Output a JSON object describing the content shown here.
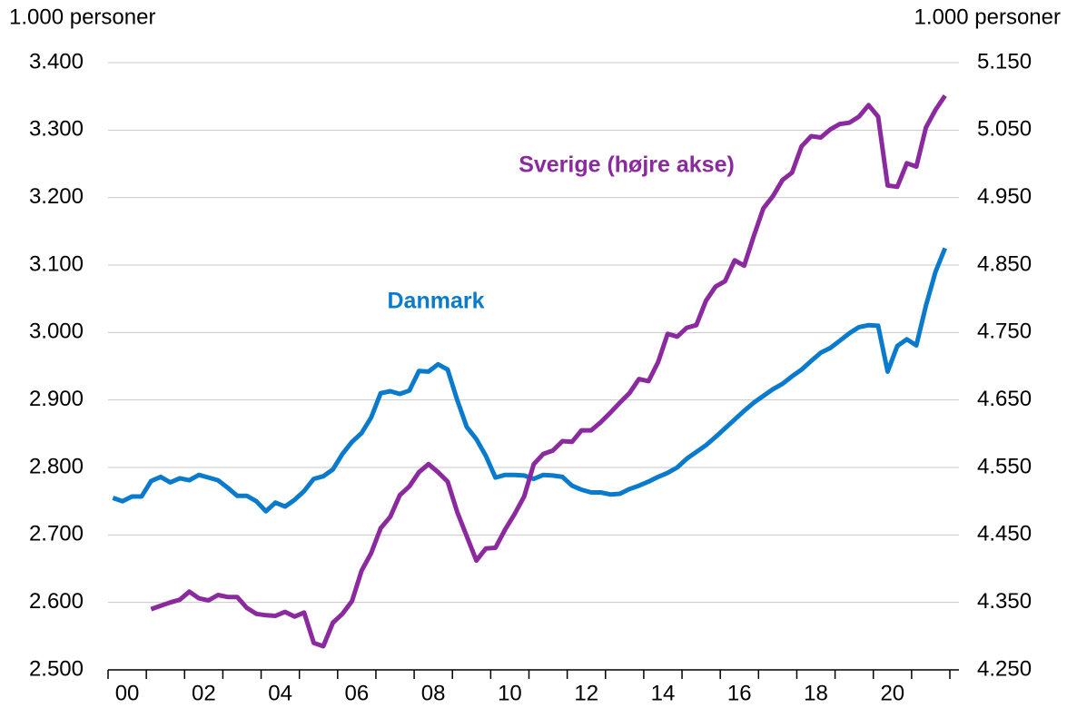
{
  "chart_data": {
    "type": "line",
    "y_axis_label": "1.000 personer",
    "y2_axis_label": "1.000 personer",
    "annotations": [
      "Danmark",
      "Sverige (højre akse)"
    ],
    "x": [
      2000.125,
      2000.375,
      2000.625,
      2000.875,
      2001.125,
      2001.375,
      2001.625,
      2001.875,
      2002.125,
      2002.375,
      2002.625,
      2002.875,
      2003.125,
      2003.375,
      2003.625,
      2003.875,
      2004.125,
      2004.375,
      2004.625,
      2004.875,
      2005.125,
      2005.375,
      2005.625,
      2005.875,
      2006.125,
      2006.375,
      2006.625,
      2006.875,
      2007.125,
      2007.375,
      2007.625,
      2007.875,
      2008.125,
      2008.375,
      2008.625,
      2008.875,
      2009.125,
      2009.375,
      2009.625,
      2009.875,
      2010.125,
      2010.375,
      2010.625,
      2010.875,
      2011.125,
      2011.375,
      2011.625,
      2011.875,
      2012.125,
      2012.375,
      2012.625,
      2012.875,
      2013.125,
      2013.375,
      2013.625,
      2013.875,
      2014.125,
      2014.375,
      2014.625,
      2014.875,
      2015.125,
      2015.375,
      2015.625,
      2015.875,
      2016.125,
      2016.375,
      2016.625,
      2016.875,
      2017.125,
      2017.375,
      2017.625,
      2017.875,
      2018.125,
      2018.375,
      2018.625,
      2018.875,
      2019.125,
      2019.375,
      2019.625,
      2019.875,
      2020.125,
      2020.375,
      2020.625,
      2020.875,
      2021.125,
      2021.375,
      2021.625,
      2021.875
    ],
    "series": [
      {
        "name": "Danmark",
        "color": "#0a7bcc",
        "axis": "y",
        "values": [
          2755,
          2750,
          2757,
          2757,
          2780,
          2786,
          2778,
          2784,
          2781,
          2789,
          2785,
          2781,
          2770,
          2758,
          2758,
          2750,
          2735,
          2748,
          2742,
          2752,
          2765,
          2783,
          2787,
          2797,
          2820,
          2838,
          2851,
          2874,
          2910,
          2913,
          2909,
          2914,
          2943,
          2942,
          2953,
          2945,
          2900,
          2860,
          2842,
          2817,
          2785,
          2789,
          2789,
          2788,
          2783,
          2789,
          2788,
          2786,
          2773,
          2767,
          2763,
          2763,
          2760,
          2761,
          2768,
          2773,
          2779,
          2786,
          2792,
          2800,
          2813,
          2823,
          2833,
          2845,
          2858,
          2871,
          2884,
          2896,
          2906,
          2916,
          2924,
          2935,
          2945,
          2958,
          2970,
          2977,
          2988,
          2999,
          3008,
          3011,
          3010,
          2942,
          2980,
          2990,
          2981,
          3040,
          3090,
          3125
        ]
      },
      {
        "name": "Sverige",
        "color": "#8b2a9e",
        "axis": "y2",
        "values": [
          null,
          null,
          null,
          null,
          4340,
          4345,
          4350,
          4354,
          4366,
          4356,
          4353,
          4361,
          4358,
          4358,
          4342,
          4333,
          4331,
          4330,
          4336,
          4329,
          4335,
          4290,
          4285,
          4320,
          4333,
          4352,
          4397,
          4423,
          4460,
          4477,
          4509,
          4522,
          4543,
          4555,
          4543,
          4529,
          4484,
          4448,
          4412,
          4430,
          4431,
          4458,
          4481,
          4507,
          4555,
          4570,
          4575,
          4589,
          4588,
          4605,
          4605,
          4617,
          4631,
          4646,
          4660,
          4681,
          4678,
          4706,
          4748,
          4744,
          4757,
          4761,
          4797,
          4818,
          4826,
          4857,
          4849,
          4893,
          4934,
          4952,
          4976,
          4987,
          5026,
          5041,
          5039,
          5051,
          5059,
          5061,
          5070,
          5087,
          5070,
          4968,
          4966,
          5001,
          4996,
          5054,
          5080,
          5101
        ]
      }
    ],
    "xlim": [
      2000,
      2022
    ],
    "xtick_marks": [
      2000,
      2001,
      2002,
      2003,
      2004,
      2005,
      2006,
      2007,
      2008,
      2009,
      2010,
      2011,
      2012,
      2013,
      2014,
      2015,
      2016,
      2017,
      2018,
      2019,
      2020,
      2021,
      2022
    ],
    "xticks": [
      {
        "value": 2000.5,
        "label": "00"
      },
      {
        "value": 2002.5,
        "label": "02"
      },
      {
        "value": 2004.5,
        "label": "04"
      },
      {
        "value": 2006.5,
        "label": "06"
      },
      {
        "value": 2008.5,
        "label": "08"
      },
      {
        "value": 2010.5,
        "label": "10"
      },
      {
        "value": 2012.5,
        "label": "12"
      },
      {
        "value": 2014.5,
        "label": "14"
      },
      {
        "value": 2016.5,
        "label": "16"
      },
      {
        "value": 2018.5,
        "label": "18"
      },
      {
        "value": 2020.5,
        "label": "20"
      }
    ],
    "ylim": [
      2500,
      3400
    ],
    "yticks": [
      {
        "value": 2500,
        "label": "2.500"
      },
      {
        "value": 2600,
        "label": "2.600"
      },
      {
        "value": 2700,
        "label": "2.700"
      },
      {
        "value": 2800,
        "label": "2.800"
      },
      {
        "value": 2900,
        "label": "2.900"
      },
      {
        "value": 3000,
        "label": "3.000"
      },
      {
        "value": 3100,
        "label": "3.100"
      },
      {
        "value": 3200,
        "label": "3.200"
      },
      {
        "value": 3300,
        "label": "3.300"
      },
      {
        "value": 3400,
        "label": "3.400"
      }
    ],
    "y2lim": [
      4250,
      5150
    ],
    "y2ticks": [
      {
        "value": 4250,
        "label": "4.250"
      },
      {
        "value": 4350,
        "label": "4.350"
      },
      {
        "value": 4450,
        "label": "4.450"
      },
      {
        "value": 4550,
        "label": "4.550"
      },
      {
        "value": 4650,
        "label": "4.650"
      },
      {
        "value": 4750,
        "label": "4.750"
      },
      {
        "value": 4850,
        "label": "4.850"
      },
      {
        "value": 4950,
        "label": "4.950"
      },
      {
        "value": 5050,
        "label": "5.050"
      },
      {
        "value": 5150,
        "label": "5.150"
      }
    ],
    "grid": true
  }
}
